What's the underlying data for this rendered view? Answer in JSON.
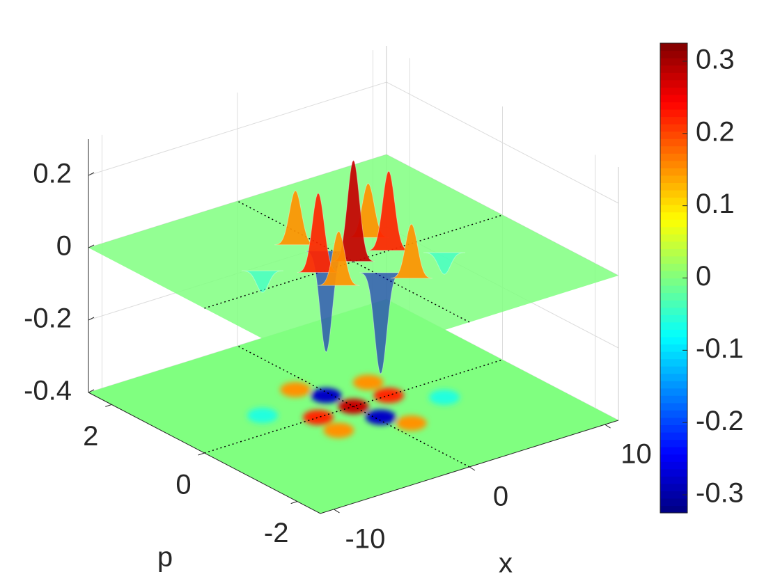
{
  "chart_data": {
    "type": "surface",
    "x": [
      0,
      -2.6,
      2.6,
      -0.3,
      0.3,
      -2.8,
      2.8,
      -1.2,
      1.2,
      -5,
      5
    ],
    "y": [
      0,
      0,
      0,
      0.5,
      -0.5,
      -0.5,
      0.5,
      0.9,
      -0.9,
      0.5,
      -0.5
    ],
    "z": [
      0.28,
      0.22,
      0.22,
      -0.28,
      -0.28,
      0.15,
      0.15,
      0.15,
      0.15,
      -0.06,
      -0.06
    ],
    "xlabel": "x",
    "ylabel": "p",
    "xlim": [
      -11,
      11
    ],
    "xticks": [
      -10,
      0,
      10
    ],
    "ylim": [
      -2.5,
      2.5
    ],
    "yticks": [
      -2,
      0,
      2
    ],
    "zlim": [
      -0.4,
      0.3
    ],
    "zticks": [
      -0.4,
      -0.2,
      0,
      0.2
    ],
    "colormap": "jet",
    "clim": [
      -0.325,
      0.325
    ],
    "cticks": [
      -0.3,
      -0.2,
      -0.1,
      0,
      0.1,
      0.2,
      0.3
    ],
    "grid": true
  }
}
